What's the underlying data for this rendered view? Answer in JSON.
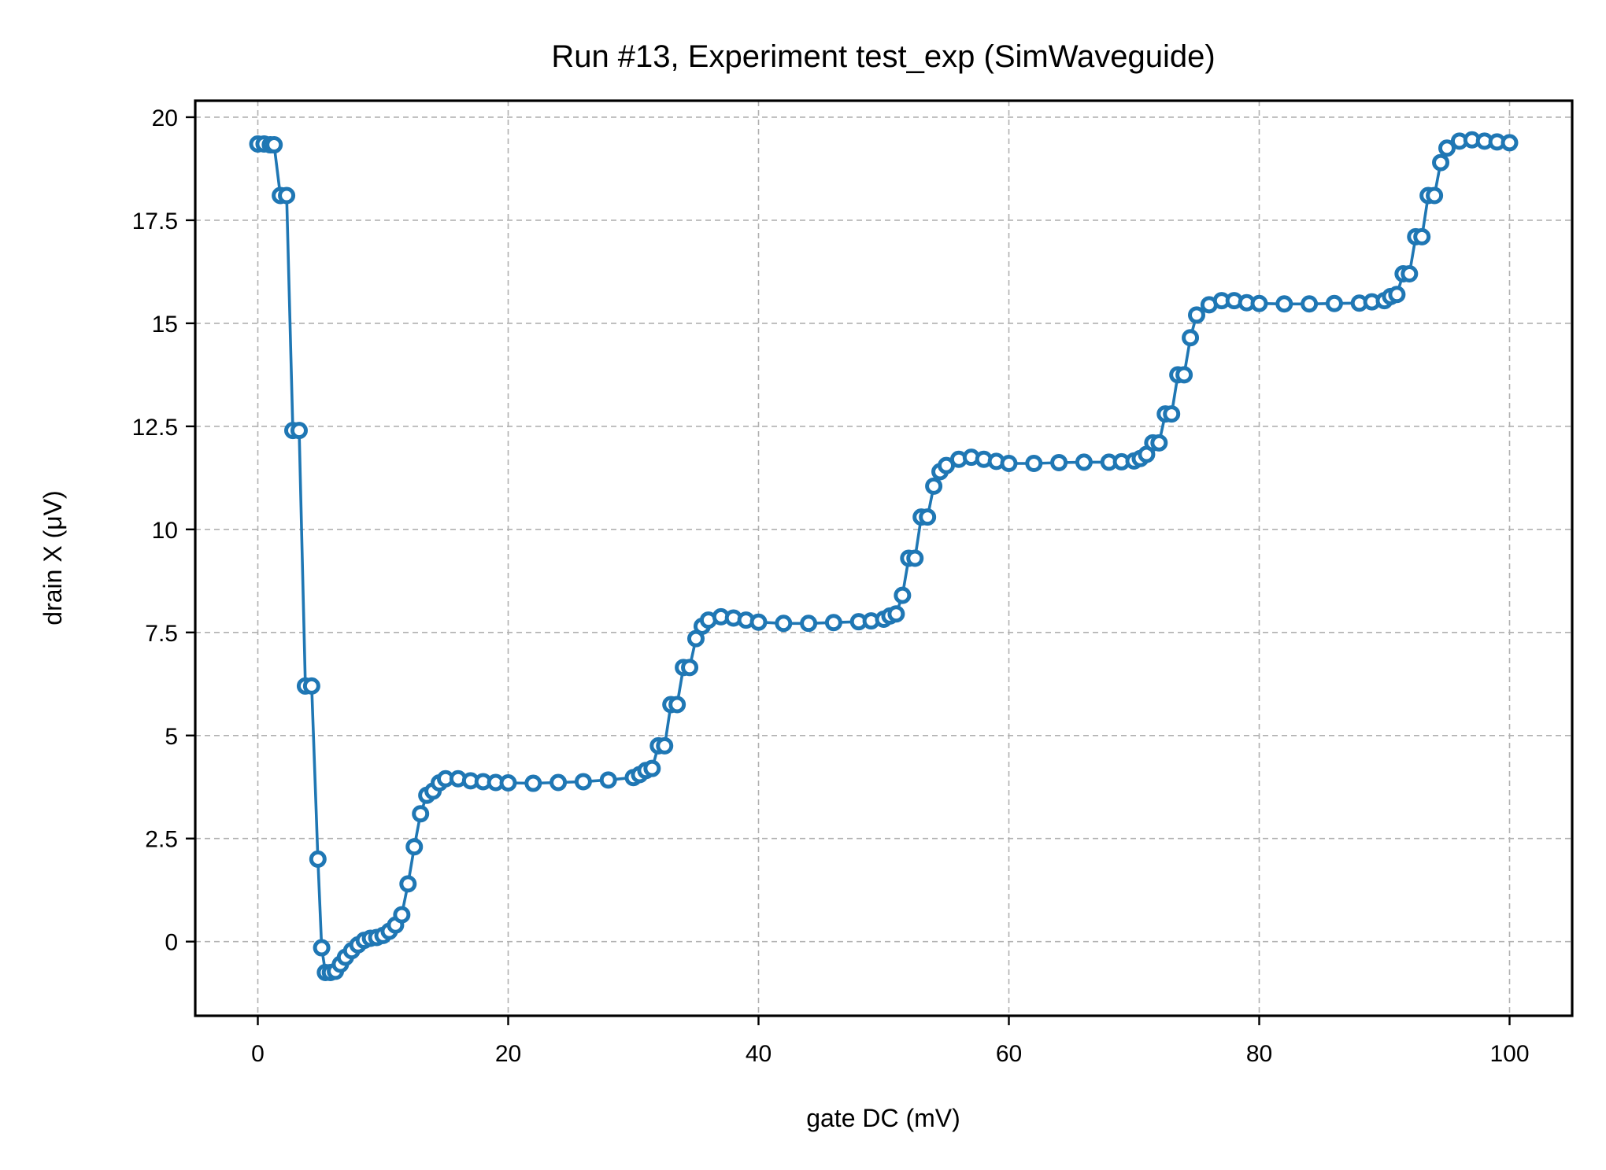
{
  "chart_data": {
    "type": "line",
    "title": "Run #13, Experiment test_exp (SimWaveguide)",
    "xlabel": "gate DC (mV)",
    "ylabel": "drain X (μV)",
    "xlim": [
      -5,
      105
    ],
    "ylim": [
      -1.8,
      20.4
    ],
    "xticks": [
      0,
      20,
      40,
      60,
      80,
      100
    ],
    "xtick_labels": [
      "0",
      "20",
      "40",
      "60",
      "80",
      "100"
    ],
    "yticks": [
      0,
      2.5,
      5,
      7.5,
      10,
      12.5,
      15,
      17.5,
      20
    ],
    "ytick_labels": [
      "0",
      "2.5",
      "5",
      "7.5",
      "10",
      "12.5",
      "15",
      "17.5",
      "20"
    ],
    "grid": true,
    "marker": "open-circle",
    "series": [
      {
        "color": "#1f77b4",
        "x": [
          0,
          0.5,
          1,
          1.3,
          1.8,
          2.3,
          2.8,
          3.3,
          3.8,
          4.3,
          4.8,
          5.1,
          5.4,
          5.8,
          6.2,
          6.6,
          7,
          7.5,
          8,
          8.5,
          9,
          9.5,
          10,
          10.5,
          11,
          11.5,
          12,
          12.5,
          13,
          13.5,
          14,
          14.5,
          15,
          16,
          17,
          18,
          19,
          20,
          22,
          24,
          26,
          28,
          30,
          30.5,
          31,
          31.5,
          32,
          32.5,
          33,
          33.5,
          34,
          34.5,
          35,
          35.5,
          36,
          37,
          38,
          39,
          40,
          42,
          44,
          46,
          48,
          49,
          50,
          50.5,
          51,
          51.5,
          52,
          52.5,
          53,
          53.5,
          54,
          54.5,
          55,
          56,
          57,
          58,
          59,
          60,
          62,
          64,
          66,
          68,
          69,
          70,
          70.5,
          71,
          71.5,
          72,
          72.5,
          73,
          73.5,
          74,
          74.5,
          75,
          76,
          77,
          78,
          79,
          80,
          82,
          84,
          86,
          88,
          89,
          90,
          90.5,
          91,
          91.5,
          92,
          92.5,
          93,
          93.5,
          94,
          94.5,
          95,
          96,
          97,
          98,
          99,
          100
        ],
        "y": [
          19.35,
          19.35,
          19.33,
          19.33,
          18.1,
          18.1,
          12.4,
          12.4,
          6.2,
          6.2,
          2.0,
          -0.15,
          -0.75,
          -0.75,
          -0.72,
          -0.55,
          -0.38,
          -0.22,
          -0.08,
          0.03,
          0.08,
          0.1,
          0.15,
          0.25,
          0.4,
          0.65,
          1.4,
          2.3,
          3.1,
          3.55,
          3.65,
          3.85,
          3.95,
          3.95,
          3.9,
          3.88,
          3.86,
          3.85,
          3.84,
          3.86,
          3.88,
          3.92,
          3.98,
          4.05,
          4.15,
          4.2,
          4.75,
          4.75,
          5.75,
          5.75,
          6.65,
          6.65,
          7.35,
          7.65,
          7.8,
          7.88,
          7.85,
          7.8,
          7.75,
          7.72,
          7.72,
          7.74,
          7.76,
          7.78,
          7.82,
          7.9,
          7.95,
          8.4,
          9.3,
          9.3,
          10.3,
          10.3,
          11.05,
          11.4,
          11.55,
          11.7,
          11.75,
          11.7,
          11.65,
          11.6,
          11.6,
          11.62,
          11.63,
          11.63,
          11.64,
          11.66,
          11.72,
          11.82,
          12.1,
          12.1,
          12.8,
          12.8,
          13.75,
          13.75,
          14.65,
          15.2,
          15.45,
          15.55,
          15.55,
          15.5,
          15.48,
          15.47,
          15.47,
          15.48,
          15.49,
          15.52,
          15.55,
          15.65,
          15.7,
          16.2,
          16.2,
          17.1,
          17.1,
          18.1,
          18.1,
          18.9,
          19.25,
          19.42,
          19.45,
          19.42,
          19.4,
          19.38
        ]
      }
    ]
  }
}
